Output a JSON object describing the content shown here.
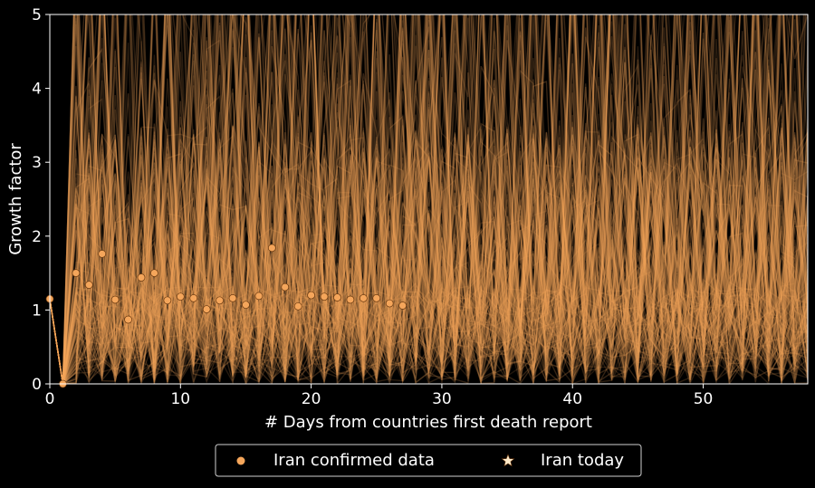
{
  "chart_data": {
    "type": "line",
    "xlabel": "# Days from countries first death report",
    "ylabel": "Growth factor",
    "xlim": [
      0,
      58
    ],
    "ylim": [
      0,
      5
    ],
    "x_ticks": [
      0,
      10,
      20,
      30,
      40,
      50
    ],
    "y_ticks": [
      0,
      1,
      2,
      3,
      4,
      5
    ],
    "grid": false,
    "legend": {
      "placement": "bottom-center",
      "entries": [
        "Iran confirmed data",
        "Iran today"
      ]
    },
    "colors": {
      "background": "#000000",
      "series": "#f5a65b",
      "marker_edge": "#6b3a10",
      "star": "#fde9c8",
      "axes": "#ffffff"
    },
    "series": [
      {
        "name": "Iran confirmed data",
        "style": "scatter",
        "x": [
          0,
          1,
          2,
          3,
          4,
          5,
          6,
          7,
          8,
          9,
          10,
          11,
          12,
          13,
          14,
          15,
          16,
          17,
          18,
          19,
          20,
          21,
          22,
          23,
          24,
          25,
          26,
          27
        ],
        "y": [
          1.15,
          0.0,
          1.5,
          1.34,
          1.76,
          1.14,
          0.87,
          1.44,
          1.5,
          1.13,
          1.18,
          1.16,
          1.01,
          1.13,
          1.16,
          1.07,
          1.19,
          1.84,
          1.31,
          1.05,
          1.2,
          1.18,
          1.17,
          1.14,
          1.16,
          1.16,
          1.09,
          1.06
        ]
      },
      {
        "name": "Iran today",
        "style": "star",
        "x": [],
        "y": []
      }
    ],
    "simulated_trajectories": {
      "count": 150,
      "color": "#f5a65b",
      "x_range": [
        0,
        58
      ],
      "y_range": [
        0,
        5
      ]
    }
  }
}
